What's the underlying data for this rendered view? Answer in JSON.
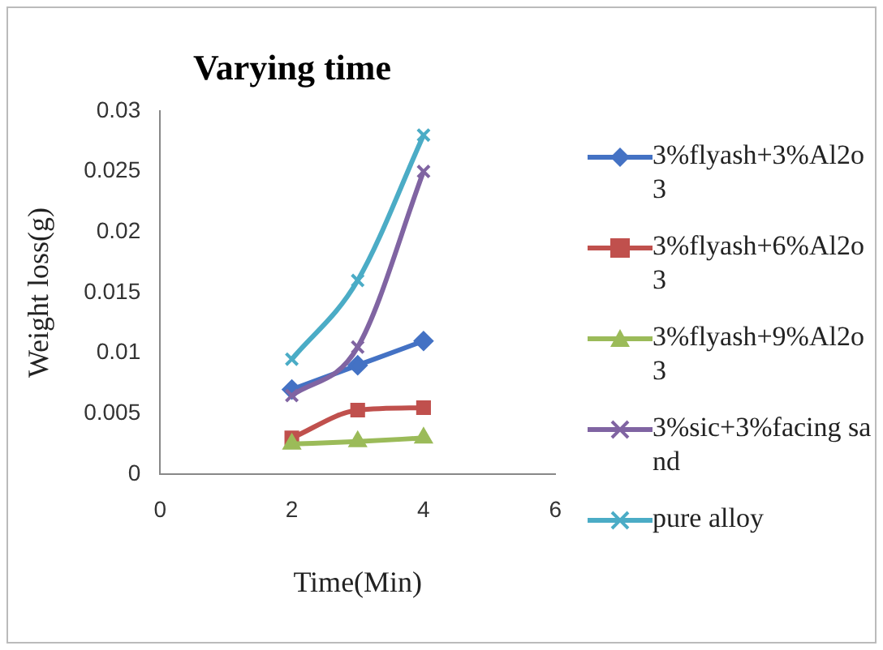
{
  "chart_data": {
    "type": "line",
    "title": "Varying time",
    "xlabel": "Time(Min)",
    "ylabel": "Weight loss(g)",
    "x": [
      2,
      3,
      4
    ],
    "series": [
      {
        "name": "3%flyash+3%Al2o3",
        "color": "#4472c4",
        "marker": "diamond",
        "values": [
          0.007,
          0.009,
          0.011
        ]
      },
      {
        "name": "3%flyash+6%Al2o3",
        "color": "#c0504d",
        "marker": "square",
        "values": [
          0.003,
          0.0053,
          0.0055
        ]
      },
      {
        "name": "3%flyash+9%Al2o3",
        "color": "#9bbb59",
        "marker": "triangle",
        "values": [
          0.0025,
          0.0027,
          0.003
        ]
      },
      {
        "name": "3%sic+3%facing sand",
        "color": "#8064a2",
        "marker": "cross",
        "values": [
          0.0065,
          0.0105,
          0.025
        ]
      },
      {
        "name": "pure alloy",
        "color": "#4bacc6",
        "marker": "cross",
        "values": [
          0.0095,
          0.016,
          0.028
        ]
      }
    ],
    "xlim": [
      0,
      6
    ],
    "xticks": [
      0,
      2,
      4,
      6
    ],
    "ylim": [
      0,
      0.03
    ],
    "yticks": [
      0,
      0.005,
      0.01,
      0.015,
      0.02,
      0.025,
      0.03
    ],
    "grid": false,
    "legend": "right"
  }
}
